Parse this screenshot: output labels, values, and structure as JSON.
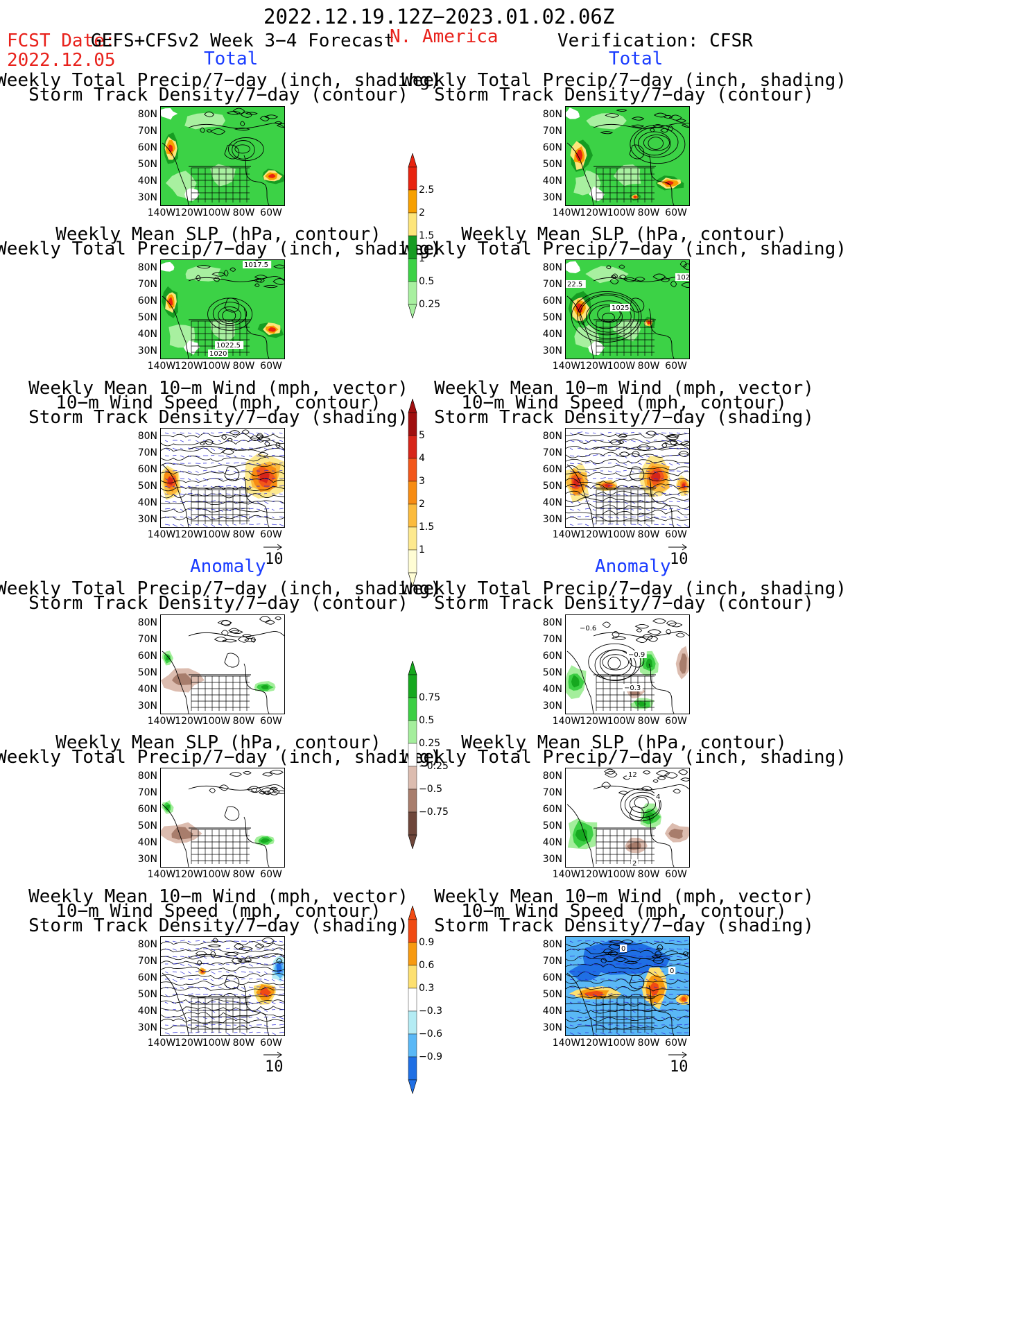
{
  "header": {
    "period": "2022.12.19.12Z−2023.01.02.06Z",
    "fcst_label": "FCST Date:",
    "model": "GEFS+CFSv2 Week 3−4 Forecast",
    "region": "N. America",
    "fcst_date": "2022.12.05",
    "verification": "Verification: CFSR"
  },
  "sections": {
    "total": "Total",
    "anomaly": "Anomaly"
  },
  "titles": {
    "precip": [
      "Weekly Total Precip/7−day (inch, shading)",
      "Storm Track Density/7−day (contour)"
    ],
    "slp": [
      "Weekly Mean SLP (hPa, contour)",
      "Weekly Total Precip/7−day (inch, shading)"
    ],
    "wind": [
      "Weekly Mean 10−m Wind (mph, vector)",
      "10−m Wind Speed (mph, contour)",
      "Storm Track Density/7−day (shading)"
    ]
  },
  "axes": {
    "lat_ticks": [
      "80N",
      "70N",
      "60N",
      "50N",
      "40N",
      "30N"
    ],
    "lon_ticks": [
      "140W",
      "120W",
      "100W",
      "80W",
      "60W"
    ]
  },
  "vector_reference": "10",
  "colorbars": {
    "precip_total": {
      "labels": [
        "2.5",
        "2",
        "1.5",
        "1",
        "0.5",
        "0.25"
      ],
      "colors": [
        "#e8230f",
        "#f7a000",
        "#fde57a",
        "#169c22",
        "#3cd246",
        "#a8f0a0"
      ]
    },
    "storm_total": {
      "labels": [
        "5",
        "4",
        "3",
        "2",
        "1.5",
        "1"
      ],
      "colors": [
        "#a00f0f",
        "#d72519",
        "#f2561a",
        "#f78c12",
        "#fbbb3d",
        "#fde98e",
        "#fffdd4"
      ]
    },
    "precip_anom": {
      "labels": [
        "0.75",
        "0.5",
        "0.25",
        "−0.25",
        "−0.5",
        "−0.75"
      ],
      "colors": [
        "#16a81f",
        "#3ccf44",
        "#a4ee9c",
        "#ffffff",
        "#dcbcaf",
        "#a87d6c",
        "#6e463a"
      ]
    },
    "storm_anom": {
      "labels": [
        "0.9",
        "0.6",
        "0.3",
        "−0.3",
        "−0.6",
        "−0.9"
      ],
      "colors": [
        "#f04a13",
        "#f79a10",
        "#fde070",
        "#ffffff",
        "#b4ecf4",
        "#5ab8f6",
        "#1f6fe4"
      ]
    }
  },
  "contour_labels": {
    "fc_slp_total": [
      "1017.5",
      "1022.5",
      "1020"
    ],
    "vf_slp_total": [
      "22.5",
      "1025",
      "102"
    ],
    "vf_precip_anom": [
      "−0.6",
      "−0.9",
      "−0.3"
    ],
    "vf_slp_anom": [
      "12",
      "4",
      "2"
    ],
    "vf_wind_anom": [
      "0",
      "0"
    ]
  }
}
